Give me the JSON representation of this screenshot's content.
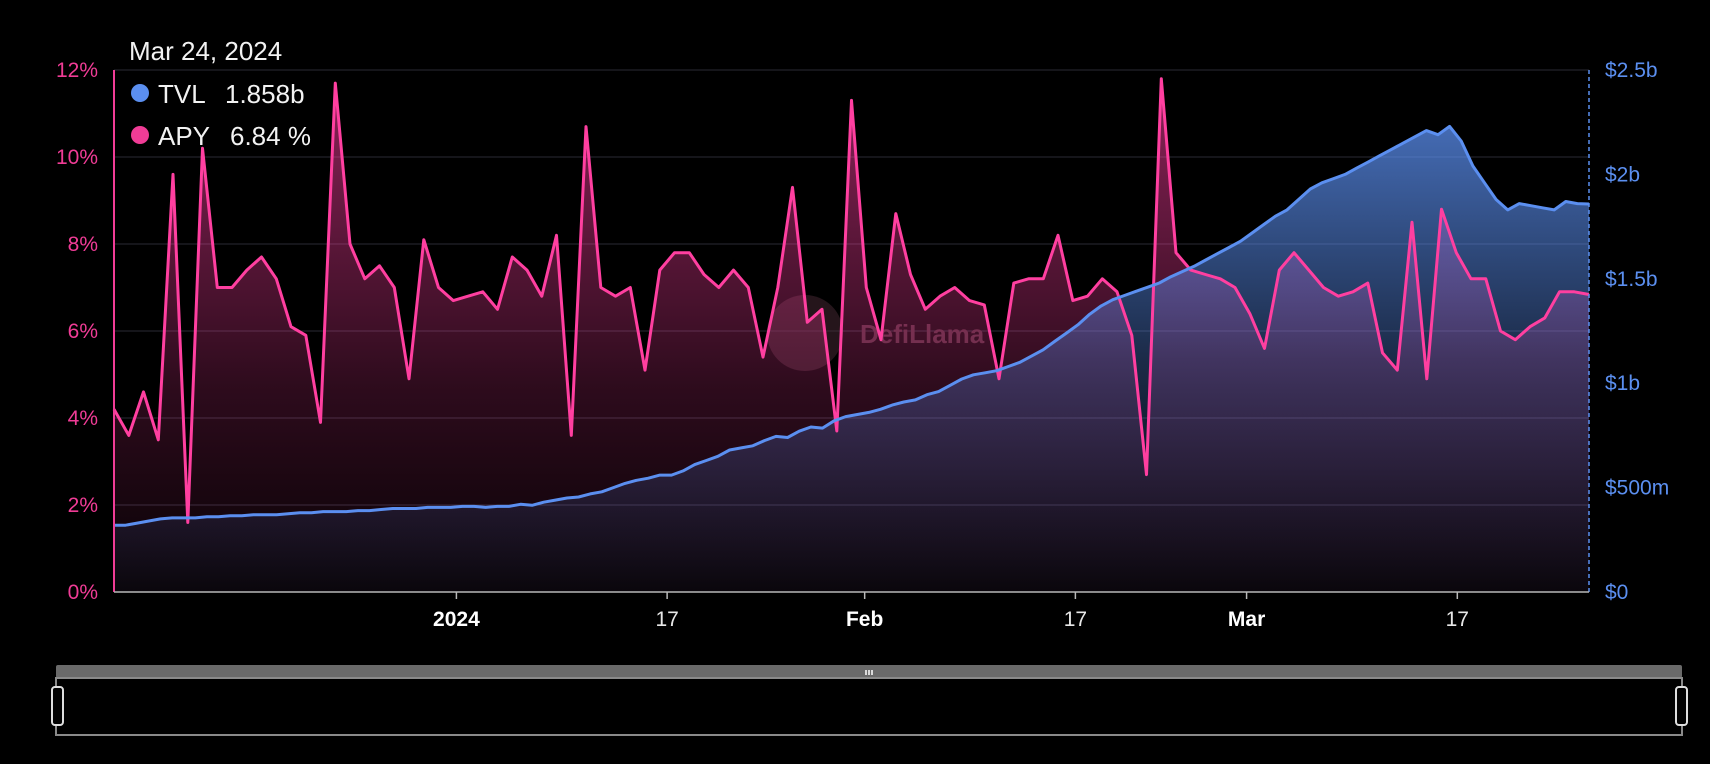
{
  "watermark": "DefiLlama",
  "tooltip": {
    "date": "Mar 24, 2024",
    "items": [
      {
        "name": "TVL",
        "value": "1.858b",
        "color": "#5b8ff0"
      },
      {
        "name": "APY",
        "value": "6.84 %",
        "color": "#f03c96"
      }
    ]
  },
  "colors": {
    "tvl": "#5b8ff0",
    "apy": "#ff3fa0"
  },
  "chart_data": {
    "type": "line",
    "x_start": "2023-12-06",
    "x_end": "2024-03-27",
    "y_left": {
      "name": "APY",
      "unit": "%",
      "ylim": [
        0,
        12
      ],
      "ticks": [
        "0%",
        "2%",
        "4%",
        "6%",
        "8%",
        "10%",
        "12%"
      ]
    },
    "y_right": {
      "name": "TVL",
      "ylim": [
        0,
        2500000000
      ],
      "ticks": [
        "$0",
        "$500m",
        "$1b",
        "$1.5b",
        "$2b",
        "$2.5b"
      ]
    },
    "x_ticks": [
      {
        "label": "2024",
        "date": "2024-01-01",
        "bold": true
      },
      {
        "label": "17",
        "date": "2024-01-17",
        "bold": false
      },
      {
        "label": "Feb",
        "date": "2024-02-01",
        "bold": true
      },
      {
        "label": "17",
        "date": "2024-02-17",
        "bold": false
      },
      {
        "label": "Mar",
        "date": "2024-03-01",
        "bold": true
      },
      {
        "label": "17",
        "date": "2024-03-17",
        "bold": false
      }
    ],
    "series": [
      {
        "name": "TVL",
        "axis": "right",
        "values": [
          [
            0,
            320000000
          ],
          [
            1,
            320000000
          ],
          [
            2,
            330000000
          ],
          [
            3,
            340000000
          ],
          [
            4,
            350000000
          ],
          [
            5,
            355000000
          ],
          [
            6,
            355000000
          ],
          [
            7,
            355000000
          ],
          [
            8,
            360000000
          ],
          [
            9,
            360000000
          ],
          [
            10,
            365000000
          ],
          [
            11,
            365000000
          ],
          [
            12,
            370000000
          ],
          [
            13,
            370000000
          ],
          [
            14,
            370000000
          ],
          [
            15,
            375000000
          ],
          [
            16,
            380000000
          ],
          [
            17,
            380000000
          ],
          [
            18,
            385000000
          ],
          [
            19,
            385000000
          ],
          [
            20,
            385000000
          ],
          [
            21,
            390000000
          ],
          [
            22,
            390000000
          ],
          [
            23,
            395000000
          ],
          [
            24,
            400000000
          ],
          [
            25,
            400000000
          ],
          [
            26,
            400000000
          ],
          [
            27,
            405000000
          ],
          [
            28,
            405000000
          ],
          [
            29,
            405000000
          ],
          [
            30,
            410000000
          ],
          [
            31,
            410000000
          ],
          [
            32,
            405000000
          ],
          [
            33,
            410000000
          ],
          [
            34,
            410000000
          ],
          [
            35,
            420000000
          ],
          [
            36,
            415000000
          ],
          [
            37,
            430000000
          ],
          [
            38,
            440000000
          ],
          [
            39,
            450000000
          ],
          [
            40,
            455000000
          ],
          [
            41,
            470000000
          ],
          [
            42,
            480000000
          ],
          [
            43,
            500000000
          ],
          [
            44,
            520000000
          ],
          [
            45,
            535000000
          ],
          [
            46,
            545000000
          ],
          [
            47,
            560000000
          ],
          [
            48,
            560000000
          ],
          [
            49,
            580000000
          ],
          [
            50,
            610000000
          ],
          [
            51,
            630000000
          ],
          [
            52,
            650000000
          ],
          [
            53,
            680000000
          ],
          [
            54,
            690000000
          ],
          [
            55,
            700000000
          ],
          [
            56,
            725000000
          ],
          [
            57,
            745000000
          ],
          [
            58,
            740000000
          ],
          [
            59,
            770000000
          ],
          [
            60,
            790000000
          ],
          [
            61,
            785000000
          ],
          [
            62,
            820000000
          ],
          [
            63,
            840000000
          ],
          [
            64,
            850000000
          ],
          [
            65,
            860000000
          ],
          [
            66,
            875000000
          ],
          [
            67,
            895000000
          ],
          [
            68,
            910000000
          ],
          [
            69,
            920000000
          ],
          [
            70,
            945000000
          ],
          [
            71,
            960000000
          ],
          [
            72,
            990000000
          ],
          [
            73,
            1020000000
          ],
          [
            74,
            1040000000
          ],
          [
            75,
            1050000000
          ],
          [
            76,
            1060000000
          ],
          [
            77,
            1080000000
          ],
          [
            78,
            1100000000
          ],
          [
            79,
            1130000000
          ],
          [
            80,
            1160000000
          ],
          [
            81,
            1200000000
          ],
          [
            82,
            1240000000
          ],
          [
            83,
            1280000000
          ],
          [
            84,
            1330000000
          ],
          [
            85,
            1370000000
          ],
          [
            86,
            1400000000
          ],
          [
            87,
            1420000000
          ],
          [
            88,
            1440000000
          ],
          [
            89,
            1460000000
          ],
          [
            90,
            1480000000
          ],
          [
            91,
            1510000000
          ],
          [
            92,
            1535000000
          ],
          [
            93,
            1560000000
          ],
          [
            94,
            1590000000
          ],
          [
            95,
            1620000000
          ],
          [
            96,
            1650000000
          ],
          [
            97,
            1680000000
          ],
          [
            98,
            1720000000
          ],
          [
            99,
            1760000000
          ],
          [
            100,
            1800000000
          ],
          [
            101,
            1830000000
          ],
          [
            102,
            1880000000
          ],
          [
            103,
            1930000000
          ],
          [
            104,
            1960000000
          ],
          [
            105,
            1980000000
          ],
          [
            106,
            2000000000
          ],
          [
            107,
            2030000000
          ],
          [
            108,
            2060000000
          ],
          [
            109,
            2090000000
          ],
          [
            110,
            2120000000
          ],
          [
            111,
            2150000000
          ],
          [
            112,
            2180000000
          ],
          [
            113,
            2210000000
          ],
          [
            114,
            2190000000
          ],
          [
            115,
            2230000000
          ],
          [
            116,
            2160000000
          ],
          [
            117,
            2040000000
          ],
          [
            118,
            1960000000
          ],
          [
            119,
            1880000000
          ],
          [
            120,
            1830000000
          ],
          [
            121,
            1860000000
          ],
          [
            122,
            1850000000
          ],
          [
            123,
            1840000000
          ],
          [
            124,
            1830000000
          ],
          [
            125,
            1870000000
          ],
          [
            126,
            1860000000
          ],
          [
            127,
            1858000000
          ]
        ]
      },
      {
        "name": "APY",
        "axis": "left",
        "values": [
          [
            0,
            4.2
          ],
          [
            1,
            3.6
          ],
          [
            2,
            4.6
          ],
          [
            3,
            3.5
          ],
          [
            4,
            9.6
          ],
          [
            5,
            1.6
          ],
          [
            6,
            10.2
          ],
          [
            7,
            7.0
          ],
          [
            8,
            7.0
          ],
          [
            9,
            7.4
          ],
          [
            10,
            7.7
          ],
          [
            11,
            7.2
          ],
          [
            12,
            6.1
          ],
          [
            13,
            5.9
          ],
          [
            14,
            3.9
          ],
          [
            15,
            11.7
          ],
          [
            16,
            8.0
          ],
          [
            17,
            7.2
          ],
          [
            18,
            7.5
          ],
          [
            19,
            7.0
          ],
          [
            20,
            4.9
          ],
          [
            21,
            8.1
          ],
          [
            22,
            7.0
          ],
          [
            23,
            6.7
          ],
          [
            24,
            6.8
          ],
          [
            25,
            6.9
          ],
          [
            26,
            6.5
          ],
          [
            27,
            7.7
          ],
          [
            28,
            7.4
          ],
          [
            29,
            6.8
          ],
          [
            30,
            8.2
          ],
          [
            31,
            3.6
          ],
          [
            32,
            10.7
          ],
          [
            33,
            7.0
          ],
          [
            34,
            6.8
          ],
          [
            35,
            7.0
          ],
          [
            36,
            5.1
          ],
          [
            37,
            7.4
          ],
          [
            38,
            7.8
          ],
          [
            39,
            7.8
          ],
          [
            40,
            7.3
          ],
          [
            41,
            7.0
          ],
          [
            42,
            7.4
          ],
          [
            43,
            7.0
          ],
          [
            44,
            5.4
          ],
          [
            45,
            7.0
          ],
          [
            46,
            9.3
          ],
          [
            47,
            6.2
          ],
          [
            48,
            6.5
          ],
          [
            49,
            3.7
          ],
          [
            50,
            11.3
          ],
          [
            51,
            7.0
          ],
          [
            52,
            5.8
          ],
          [
            53,
            8.7
          ],
          [
            54,
            7.3
          ],
          [
            55,
            6.5
          ],
          [
            56,
            6.8
          ],
          [
            57,
            7.0
          ],
          [
            58,
            6.7
          ],
          [
            59,
            6.6
          ],
          [
            60,
            4.9
          ],
          [
            61,
            7.1
          ],
          [
            62,
            7.2
          ],
          [
            63,
            7.2
          ],
          [
            64,
            8.2
          ],
          [
            65,
            6.7
          ],
          [
            66,
            6.8
          ],
          [
            67,
            7.2
          ],
          [
            68,
            6.9
          ],
          [
            69,
            5.9
          ],
          [
            70,
            2.7
          ],
          [
            71,
            11.8
          ],
          [
            72,
            7.8
          ],
          [
            73,
            7.4
          ],
          [
            74,
            7.3
          ],
          [
            75,
            7.2
          ],
          [
            76,
            7.0
          ],
          [
            77,
            6.4
          ],
          [
            78,
            5.6
          ],
          [
            79,
            7.4
          ],
          [
            80,
            7.8
          ],
          [
            81,
            7.4
          ],
          [
            82,
            7.0
          ],
          [
            83,
            6.8
          ],
          [
            84,
            6.9
          ],
          [
            85,
            7.1
          ],
          [
            86,
            5.5
          ],
          [
            87,
            5.1
          ],
          [
            88,
            8.5
          ],
          [
            89,
            4.9
          ],
          [
            90,
            8.8
          ],
          [
            91,
            7.8
          ],
          [
            92,
            7.2
          ],
          [
            93,
            7.2
          ],
          [
            94,
            6.0
          ],
          [
            95,
            5.8
          ],
          [
            96,
            6.1
          ],
          [
            97,
            6.3
          ],
          [
            98,
            6.9
          ],
          [
            99,
            6.9
          ],
          [
            100,
            6.84
          ]
        ]
      }
    ]
  }
}
